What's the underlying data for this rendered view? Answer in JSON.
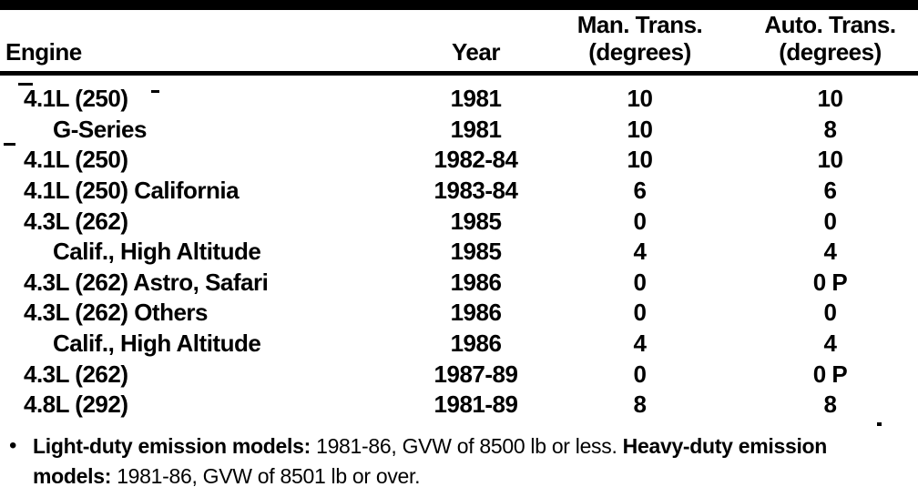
{
  "colors": {
    "ink": "#000000",
    "paper": "#ffffff"
  },
  "table": {
    "col_headers": {
      "engine": "Engine",
      "year": "Year",
      "man_line1": "Man. Trans.",
      "man_line2": "(degrees)",
      "auto_line1": "Auto. Trans.",
      "auto_line2": "(degrees)"
    },
    "rows": [
      {
        "engine": "4.1L (250)",
        "indented": false,
        "year": "1981",
        "man_trans": "10",
        "auto_trans": "10"
      },
      {
        "engine": "G-Series",
        "indented": true,
        "year": "1981",
        "man_trans": "10",
        "auto_trans": "8"
      },
      {
        "engine": "4.1L (250)",
        "indented": false,
        "year": "1982-84",
        "man_trans": "10",
        "auto_trans": "10"
      },
      {
        "engine": "4.1L (250) California",
        "indented": false,
        "year": "1983-84",
        "man_trans": "6",
        "auto_trans": "6"
      },
      {
        "engine": "4.3L (262)",
        "indented": false,
        "year": "1985",
        "man_trans": "0",
        "auto_trans": "0"
      },
      {
        "engine": "Calif., High Altitude",
        "indented": true,
        "year": "1985",
        "man_trans": "4",
        "auto_trans": "4"
      },
      {
        "engine": "4.3L (262) Astro, Safari",
        "indented": false,
        "year": "1986",
        "man_trans": "0",
        "auto_trans": "0 P"
      },
      {
        "engine": "4.3L (262) Others",
        "indented": false,
        "year": "1986",
        "man_trans": "0",
        "auto_trans": "0"
      },
      {
        "engine": "Calif., High Altitude",
        "indented": true,
        "year": "1986",
        "man_trans": "4",
        "auto_trans": "4"
      },
      {
        "engine": "4.3L (262)",
        "indented": false,
        "year": "1987-89",
        "man_trans": "0",
        "auto_trans": "0 P"
      },
      {
        "engine": "4.8L (292)",
        "indented": false,
        "year": "1981-89",
        "man_trans": "8",
        "auto_trans": "8"
      }
    ]
  },
  "footnote": {
    "bullet": "•",
    "line1_bold1": "Light-duty emission models:",
    "line1_text": "1981-86, GVW of 8500 lb or less.",
    "line1_bold2": "Heavy-duty emission",
    "line2_bold": "models:",
    "line2_text": "1981-86, GVW of 8501 lb or over."
  }
}
